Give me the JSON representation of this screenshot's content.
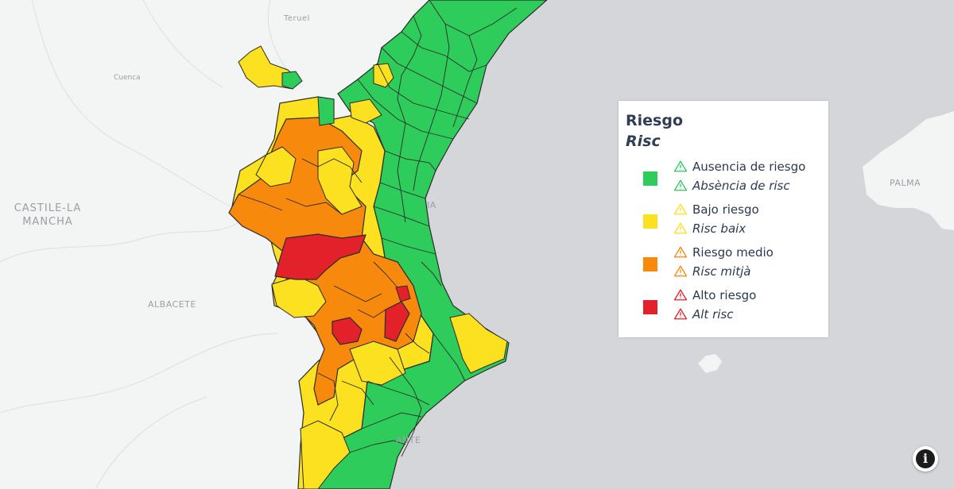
{
  "legend": {
    "title": "Riesgo",
    "title_alt": "Risc",
    "items": [
      {
        "label": "Ausencia de riesgo",
        "label_alt": "Absència de risc",
        "color": "#2ecc5b"
      },
      {
        "label": "Bajo riesgo",
        "label_alt": "Risc baix",
        "color": "#fbe11f"
      },
      {
        "label": "Riesgo medio",
        "label_alt": "Risc mitjà",
        "color": "#f7890c"
      },
      {
        "label": "Alto riesgo",
        "label_alt": "Alt risc",
        "color": "#e3212b"
      }
    ]
  },
  "places": {
    "teruel": "Teruel",
    "cuenca": "Cuenca",
    "castile": "CASTILE-LA MANCHA",
    "albacete": "ALBACETE",
    "palma": "PALMA",
    "valencia_fragment": "IA",
    "alicante_fragment": "ANTE"
  },
  "colors": {
    "sea": "#d4d6d9",
    "land": "#f3f4f4",
    "region_border": "#2b2b2b"
  },
  "info_button": {
    "label": "i"
  }
}
